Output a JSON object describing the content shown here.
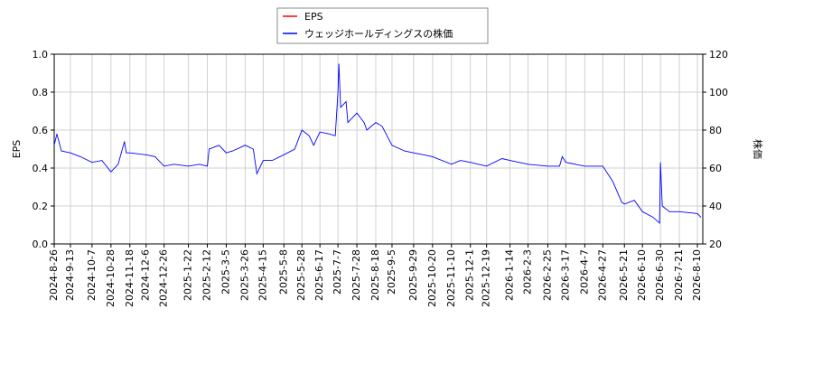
{
  "chart_data": {
    "type": "line",
    "x": [
      "2024-08-26",
      "2024-08-29",
      "2024-09-03",
      "2024-09-13",
      "2024-09-24",
      "2024-10-07",
      "2024-10-18",
      "2024-10-28",
      "2024-11-05",
      "2024-11-12",
      "2024-11-14",
      "2024-11-18",
      "2024-12-06",
      "2024-12-16",
      "2024-12-26",
      "2025-01-06",
      "2025-01-22",
      "2025-02-03",
      "2025-02-12",
      "2025-02-14",
      "2025-02-25",
      "2025-03-05",
      "2025-03-12",
      "2025-03-26",
      "2025-04-04",
      "2025-04-08",
      "2025-04-15",
      "2025-04-25",
      "2025-05-08",
      "2025-05-20",
      "2025-05-28",
      "2025-06-05",
      "2025-06-10",
      "2025-06-17",
      "2025-06-27",
      "2025-07-04",
      "2025-07-07",
      "2025-07-08",
      "2025-07-10",
      "2025-07-16",
      "2025-07-18",
      "2025-07-28",
      "2025-08-05",
      "2025-08-08",
      "2025-08-18",
      "2025-08-25",
      "2025-09-05",
      "2025-09-19",
      "2025-09-29",
      "2025-10-10",
      "2025-10-20",
      "2025-11-10",
      "2025-11-20",
      "2025-12-01",
      "2025-12-19",
      "2026-01-05",
      "2026-01-14",
      "2026-02-03",
      "2026-02-25",
      "2026-03-10",
      "2026-03-13",
      "2026-03-17",
      "2026-04-07",
      "2026-04-27",
      "2026-05-08",
      "2026-05-18",
      "2026-05-21",
      "2026-06-01",
      "2026-06-10",
      "2026-06-22",
      "2026-06-29",
      "2026-06-30",
      "2026-07-02",
      "2026-07-10",
      "2026-07-21",
      "2026-08-10",
      "2026-08-14"
    ],
    "series": [
      {
        "name": "EPS",
        "color": "#ff0000",
        "values": [
          null,
          null,
          null,
          null,
          null,
          null,
          null,
          null,
          null,
          null,
          null,
          null,
          null,
          null,
          null,
          null,
          null,
          null,
          null,
          null,
          null,
          null,
          null,
          null,
          null,
          null,
          null,
          null,
          null,
          null,
          null,
          null,
          null,
          null,
          null,
          null,
          null,
          null,
          null,
          null,
          null,
          null,
          null,
          null,
          null,
          null,
          null,
          null,
          null,
          null,
          null,
          null,
          null,
          null,
          null,
          null,
          null,
          null,
          null,
          null,
          null,
          null,
          null,
          null,
          null,
          null,
          null,
          null,
          null,
          null,
          null,
          null,
          null,
          null,
          null,
          null,
          null
        ]
      },
      {
        "name": "ウェッジホールディングスの株価",
        "color": "#0000ff",
        "axis": "y2",
        "values": [
          72,
          78,
          69,
          68,
          66,
          63,
          64,
          58,
          62,
          74,
          68,
          68,
          67,
          66,
          61,
          62,
          61,
          62,
          61,
          70,
          72,
          68,
          69,
          72,
          70,
          57,
          64,
          64,
          67,
          70,
          80,
          77,
          72,
          79,
          78,
          77,
          100,
          115,
          92,
          95,
          84,
          89,
          84,
          80,
          84,
          82,
          72,
          69,
          68,
          67,
          66,
          62,
          64,
          63,
          61,
          65,
          64,
          62,
          61,
          61,
          66,
          63,
          61,
          61,
          53,
          42,
          41,
          43,
          37,
          34,
          31,
          63,
          40,
          37,
          37,
          36,
          34
        ]
      }
    ],
    "xlim": [
      "2024-08-26",
      "2026-08-16"
    ],
    "xticks": [
      {
        "value": "2024-08-26",
        "label": "2024-8-26"
      },
      {
        "value": "2024-09-13",
        "label": "2024-9-13"
      },
      {
        "value": "2024-10-07",
        "label": "2024-10-7"
      },
      {
        "value": "2024-10-28",
        "label": "2024-10-28"
      },
      {
        "value": "2024-11-18",
        "label": "2024-11-18"
      },
      {
        "value": "2024-12-06",
        "label": "2024-12-6"
      },
      {
        "value": "2024-12-26",
        "label": "2024-12-26"
      },
      {
        "value": "2025-01-22",
        "label": "2025-1-22"
      },
      {
        "value": "2025-02-12",
        "label": "2025-2-12"
      },
      {
        "value": "2025-03-05",
        "label": "2025-3-5"
      },
      {
        "value": "2025-03-26",
        "label": "2025-3-26"
      },
      {
        "value": "2025-04-15",
        "label": "2025-4-15"
      },
      {
        "value": "2025-05-08",
        "label": "2025-5-8"
      },
      {
        "value": "2025-05-28",
        "label": "2025-5-28"
      },
      {
        "value": "2025-06-17",
        "label": "2025-6-17"
      },
      {
        "value": "2025-07-07",
        "label": "2025-7-7"
      },
      {
        "value": "2025-07-28",
        "label": "2025-7-28"
      },
      {
        "value": "2025-08-18",
        "label": "2025-8-18"
      },
      {
        "value": "2025-09-05",
        "label": "2025-9-5"
      },
      {
        "value": "2025-09-29",
        "label": "2025-9-29"
      },
      {
        "value": "2025-10-20",
        "label": "2025-10-20"
      },
      {
        "value": "2025-11-10",
        "label": "2025-11-10"
      },
      {
        "value": "2025-12-01",
        "label": "2025-12-1"
      },
      {
        "value": "2025-12-19",
        "label": "2025-12-19"
      },
      {
        "value": "2026-01-14",
        "label": "2026-1-14"
      },
      {
        "value": "2026-02-03",
        "label": "2026-2-3"
      },
      {
        "value": "2026-02-25",
        "label": "2026-2-25"
      },
      {
        "value": "2026-03-17",
        "label": "2026-3-17"
      },
      {
        "value": "2026-04-07",
        "label": "2026-4-7"
      },
      {
        "value": "2026-04-27",
        "label": "2026-4-27"
      },
      {
        "value": "2026-05-21",
        "label": "2026-5-21"
      },
      {
        "value": "2026-06-10",
        "label": "2026-6-10"
      },
      {
        "value": "2026-06-30",
        "label": "2026-6-30"
      },
      {
        "value": "2026-07-21",
        "label": "2026-7-21"
      },
      {
        "value": "2026-08-10",
        "label": "2026-8-10"
      }
    ],
    "ylim": [
      0,
      1.0
    ],
    "yticks": [
      {
        "value": 0,
        "label": "0.0"
      },
      {
        "value": 0.2,
        "label": "0.2"
      },
      {
        "value": 0.4,
        "label": "0.4"
      },
      {
        "value": 0.6,
        "label": "0.6"
      },
      {
        "value": 0.8,
        "label": "0.8"
      },
      {
        "value": 1.0,
        "label": "1.0"
      }
    ],
    "y2lim": [
      20,
      120
    ],
    "y2ticks": [
      20,
      40,
      60,
      80,
      100,
      120
    ],
    "ylabel": "EPS",
    "y2label": "株価",
    "grid": true,
    "legend": "top"
  }
}
